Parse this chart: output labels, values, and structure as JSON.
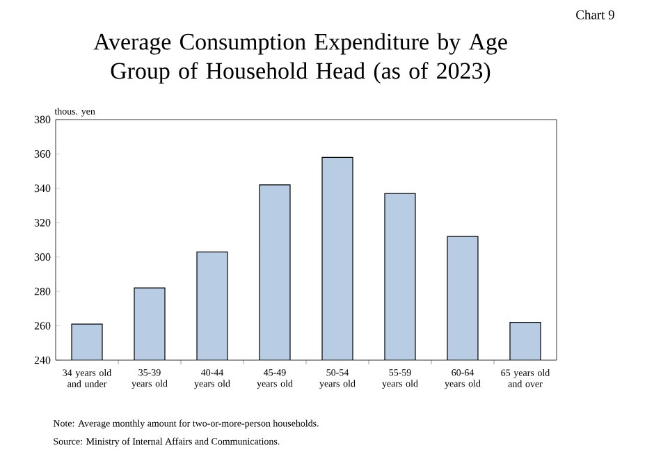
{
  "chart_data": {
    "type": "bar",
    "title": "Average Consumption Expenditure by Age Group of Household Head (as of 2023)",
    "ylabel": "thous. yen",
    "categories": [
      "34 years old and under",
      "35-39 years old",
      "40-44 years old",
      "45-49 years old",
      "50-54 years old",
      "55-59 years old",
      "60-64 years old",
      "65 years old and over"
    ],
    "values": [
      261,
      282,
      303,
      342,
      358,
      337,
      312,
      262
    ],
    "color": "#b8cce4",
    "ylim": [
      240,
      380
    ],
    "yticks": [
      240,
      260,
      280,
      300,
      320,
      340,
      360,
      380
    ],
    "annotations": [
      "Chart 9",
      "Note: Average monthly amount for two-or-more-person households.",
      "Source: Ministry of Internal Affairs and Communications."
    ]
  }
}
